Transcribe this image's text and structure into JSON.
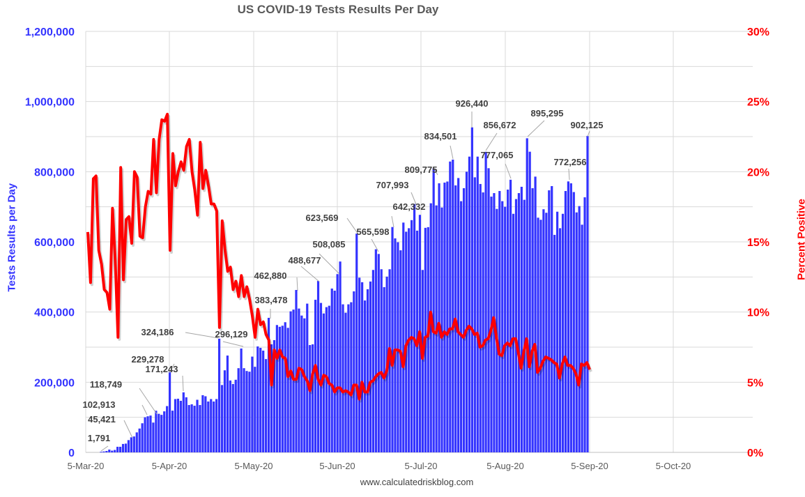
{
  "chart_data": {
    "type": "bar+line",
    "title": "US COVID-19 Tests Results Per Day",
    "ylabel_left": "Tests Results per Day",
    "ylabel_right": "Percent Positive",
    "footer": "www.calculatedriskblog.com",
    "x_ticks": [
      "5-Mar-20",
      "5-Apr-20",
      "5-May-20",
      "5-Jun-20",
      "5-Jul-20",
      "5-Aug-20",
      "5-Sep-20",
      "5-Oct-20"
    ],
    "y_left_ticks": [
      "0",
      "200,000",
      "400,000",
      "600,000",
      "800,000",
      "1,000,000",
      "1,200,000"
    ],
    "y_left_range": [
      0,
      1200000
    ],
    "y_right_ticks": [
      "0%",
      "5%",
      "10%",
      "15%",
      "20%",
      "25%",
      "30%"
    ],
    "y_right_range": [
      0,
      30
    ],
    "grid": true,
    "colors": {
      "bars": "#3333ff",
      "line": "#ff0000",
      "left_axis": "#3333ff",
      "right_axis": "#ff0000",
      "grid": "#d9d9d9"
    },
    "series": [
      {
        "name": "Tests Results per Day (thousands)",
        "type": "bar",
        "values": [
          1.8,
          2.6,
          4,
          8,
          5,
          7,
          16,
          16,
          24,
          25,
          35,
          43,
          45.4,
          57,
          68,
          83,
          100,
          102.9,
          105,
          85,
          118.7,
          110,
          107,
          117,
          132,
          229.3,
          119,
          152,
          153,
          147,
          171.2,
          157,
          135,
          137,
          133,
          150,
          135,
          163,
          160,
          145,
          152,
          145,
          152,
          324.2,
          192,
          234,
          276,
          205,
          195,
          207,
          240,
          296.1,
          240,
          232,
          230,
          273,
          244,
          302,
          298,
          290,
          266,
          383.5,
          308,
          320,
          363,
          358,
          361,
          371,
          355,
          402,
          407,
          462.9,
          410,
          390,
          382,
          424,
          306,
          308,
          435,
          488.7,
          426,
          396,
          414,
          418,
          467,
          461,
          508.1,
          544,
          422,
          398,
          422,
          428,
          459,
          623.6,
          498,
          485,
          433,
          465,
          487,
          520,
          579,
          565.6,
          522,
          471,
          501,
          522,
          642.3,
          610,
          599,
          576,
          655,
          629,
          639,
          662,
          708,
          632,
          677,
          520,
          640,
          642,
          710,
          809.8,
          704,
          767,
          698,
          769,
          772,
          829,
          834.5,
          761,
          782,
          716,
          753,
          800,
          843,
          926.4,
          784,
          843,
          765,
          741,
          856.7,
          810,
          729,
          739,
          694,
          745,
          716,
          700,
          749,
          777.1,
          680,
          722,
          739,
          757,
          720,
          895.3,
          857,
          753,
          786,
          669,
          663,
          693,
          683,
          747,
          759,
          620,
          686,
          639,
          680,
          745,
          772.3,
          767,
          742,
          684,
          702,
          649,
          727,
          902.1
        ]
      },
      {
        "name": "Percent Positive (%)",
        "type": "line",
        "values": [
          15.7,
          12.1,
          19.5,
          19.7,
          14.4,
          13.4,
          11.6,
          11.4,
          10.2,
          17.4,
          13.7,
          8.2,
          20.3,
          12.3,
          16.6,
          16.8,
          14.9,
          20.0,
          19.6,
          15.4,
          15.3,
          17.5,
          18.6,
          18.4,
          22.3,
          18.5,
          22.3,
          23.7,
          23.6,
          24.1,
          14.4,
          21.3,
          19.0,
          20.0,
          20.7,
          20.1,
          21.8,
          22.3,
          20.0,
          18.7,
          16.9,
          22.1,
          18.8,
          20.1,
          19.0,
          17.7,
          17.7,
          17.2,
          8.9,
          16.5,
          14.5,
          12.9,
          13.2,
          11.6,
          12.2,
          11.1,
          12.6,
          11.1,
          11.8,
          10.9,
          9.7,
          8.2,
          10.2,
          9.1,
          9.3,
          8.4,
          8.0,
          4.8,
          7.3,
          6.7,
          7.3,
          6.8,
          6.7,
          5.4,
          5.8,
          5.2,
          5.2,
          6.0,
          5.9,
          5.4,
          5.1,
          4.4,
          5.6,
          6.2,
          5.2,
          4.8,
          5.5,
          5.4,
          4.9,
          4.8,
          4.3,
          4.6,
          4.6,
          4.3,
          4.4,
          4.3,
          4.1,
          4.8,
          4.8,
          3.8,
          5.0,
          4.3,
          4.3,
          5.0,
          5.1,
          5.4,
          5.6,
          5.7,
          5.3,
          5.8,
          7.4,
          6.2,
          7.3,
          7.3,
          7.2,
          6.1,
          7.6,
          8.0,
          8.2,
          8.1,
          7.6,
          8.6,
          6.7,
          8.2,
          8.3,
          10.0,
          8.6,
          8.5,
          9.2,
          8.2,
          8.6,
          8.4,
          8.8,
          8.8,
          9.5,
          8.6,
          8.4,
          8.2,
          8.7,
          9.0,
          8.8,
          8.4,
          8.5,
          7.5,
          7.6,
          8.0,
          8.1,
          8.7,
          9.6,
          8.2,
          7.0,
          6.9,
          7.6,
          7.8,
          7.6,
          8.1,
          8.1,
          7.1,
          6.0,
          7.2,
          8.1,
          6.1,
          7.2,
          7.7,
          5.7,
          6.0,
          6.5,
          6.8,
          6.7,
          6.6,
          6.4,
          6.3,
          5.3,
          6.3,
          6.8,
          6.2,
          6.2,
          6.0,
          5.6,
          4.8,
          6.3,
          6.2,
          6.4,
          5.9
        ]
      }
    ],
    "annotations": [
      "1,791",
      "45,421",
      "102,913",
      "118,749",
      "229,278",
      "171,243",
      "324,186",
      "296,129",
      "383,478",
      "462,880",
      "488,677",
      "508,085",
      "623,569",
      "565,598",
      "642,332",
      "707,993",
      "809,775",
      "834,501",
      "926,440",
      "856,672",
      "777,065",
      "895,295",
      "772,256",
      "902,125"
    ]
  }
}
